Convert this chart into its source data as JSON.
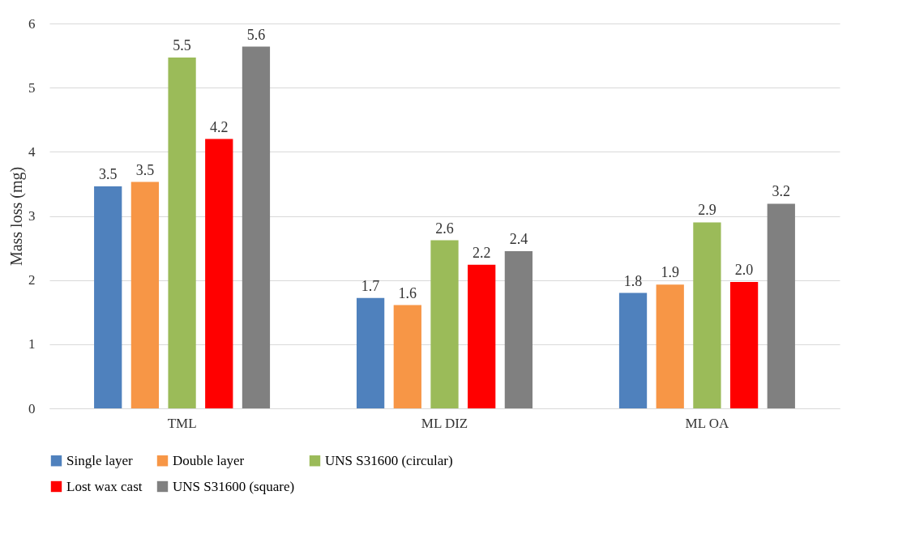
{
  "chart_data": {
    "type": "bar",
    "ylabel": "Mass loss (mg)",
    "categories": [
      "TML",
      "ML DIZ",
      "ML OA"
    ],
    "series": [
      {
        "name": "Single layer",
        "color": "#4f81bd",
        "values": [
          3.46,
          1.72,
          1.8
        ],
        "value_labels": [
          "3.5",
          "1.7",
          "1.8"
        ]
      },
      {
        "name": "Double layer",
        "color": "#f79646",
        "values": [
          3.53,
          1.61,
          1.93
        ],
        "value_labels": [
          "3.5",
          "1.6",
          "1.9"
        ]
      },
      {
        "name": "UNS S31600 (circular)",
        "color": "#9bbb59",
        "values": [
          5.47,
          2.62,
          2.9
        ],
        "value_labels": [
          "5.5",
          "2.6",
          "2.9"
        ]
      },
      {
        "name": "Lost wax cast",
        "color": "#ff0000",
        "values": [
          4.2,
          2.24,
          1.97
        ],
        "value_labels": [
          "4.2",
          "2.2",
          "2.0"
        ]
      },
      {
        "name": "UNS S31600 (square)",
        "color": "#808080",
        "values": [
          5.64,
          2.45,
          3.19
        ],
        "value_labels": [
          "5.6",
          "2.4",
          "3.2"
        ]
      }
    ],
    "ylim": [
      0,
      6
    ],
    "yticks": [
      0,
      1,
      2,
      3,
      4,
      5,
      6
    ],
    "grid": "y",
    "legend": "bottom"
  }
}
